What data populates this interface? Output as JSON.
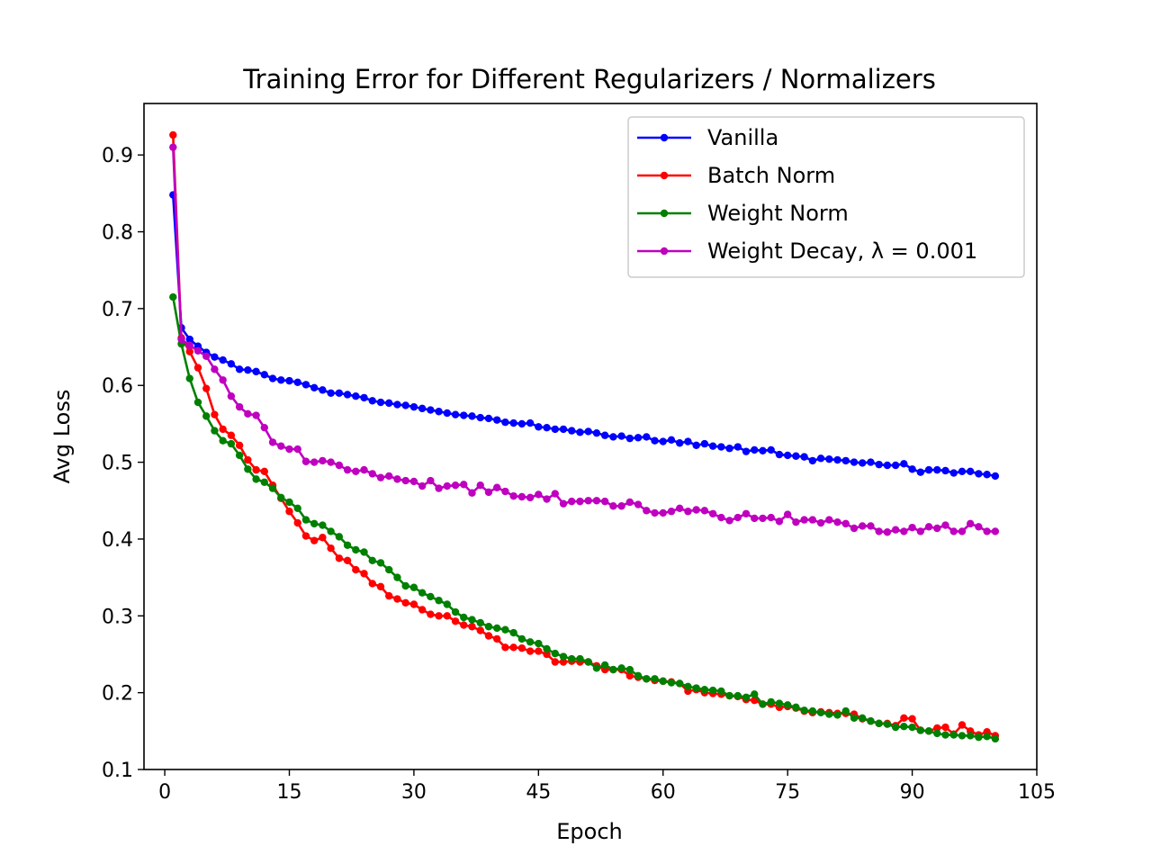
{
  "chart_data": {
    "type": "line",
    "title": "Training Error for Different Regularizers / Normalizers",
    "xlabel": "Epoch",
    "ylabel": "Avg Loss",
    "xlim": [
      -2.5,
      105
    ],
    "ylim": [
      0.1,
      0.967
    ],
    "xticks": [
      0,
      15,
      30,
      45,
      60,
      75,
      90,
      105
    ],
    "yticks": [
      0.1,
      0.2,
      0.3,
      0.4,
      0.5,
      0.6,
      0.7,
      0.8,
      0.9
    ],
    "xtick_labels": [
      "0",
      "15",
      "30",
      "45",
      "60",
      "75",
      "90",
      "105"
    ],
    "ytick_labels": [
      "0.1",
      "0.2",
      "0.3",
      "0.4",
      "0.5",
      "0.6",
      "0.7",
      "0.8",
      "0.9"
    ],
    "grid": false,
    "legend_position": "top-right",
    "x": [
      1,
      2,
      3,
      4,
      5,
      6,
      7,
      8,
      9,
      10,
      11,
      12,
      13,
      14,
      15,
      16,
      17,
      18,
      19,
      20,
      21,
      22,
      23,
      24,
      25,
      26,
      27,
      28,
      29,
      30,
      31,
      32,
      33,
      34,
      35,
      36,
      37,
      38,
      39,
      40,
      41,
      42,
      43,
      44,
      45,
      46,
      47,
      48,
      49,
      50,
      51,
      52,
      53,
      54,
      55,
      56,
      57,
      58,
      59,
      60,
      61,
      62,
      63,
      64,
      65,
      66,
      67,
      68,
      69,
      70,
      71,
      72,
      73,
      74,
      75,
      76,
      77,
      78,
      79,
      80,
      81,
      82,
      83,
      84,
      85,
      86,
      87,
      88,
      89,
      90,
      91,
      92,
      93,
      94,
      95,
      96,
      97,
      98,
      99,
      100
    ],
    "series": [
      {
        "name": "Vanilla",
        "color": "#0000ff",
        "values": [
          0.848,
          0.675,
          0.66,
          0.651,
          0.643,
          0.637,
          0.633,
          0.628,
          0.621,
          0.62,
          0.618,
          0.614,
          0.609,
          0.607,
          0.606,
          0.604,
          0.601,
          0.597,
          0.594,
          0.59,
          0.59,
          0.588,
          0.586,
          0.584,
          0.58,
          0.578,
          0.577,
          0.575,
          0.574,
          0.572,
          0.57,
          0.568,
          0.566,
          0.564,
          0.562,
          0.561,
          0.56,
          0.558,
          0.557,
          0.555,
          0.552,
          0.551,
          0.55,
          0.551,
          0.546,
          0.545,
          0.543,
          0.543,
          0.541,
          0.539,
          0.54,
          0.538,
          0.535,
          0.533,
          0.534,
          0.531,
          0.532,
          0.533,
          0.528,
          0.527,
          0.529,
          0.525,
          0.527,
          0.522,
          0.524,
          0.521,
          0.52,
          0.518,
          0.52,
          0.514,
          0.516,
          0.515,
          0.516,
          0.51,
          0.509,
          0.508,
          0.507,
          0.502,
          0.505,
          0.504,
          0.503,
          0.502,
          0.5,
          0.499,
          0.5,
          0.497,
          0.496,
          0.496,
          0.498,
          0.491,
          0.487,
          0.49,
          0.49,
          0.489,
          0.486,
          0.488,
          0.488,
          0.485,
          0.484,
          0.482
        ]
      },
      {
        "name": "Batch Norm",
        "color": "#ff0000",
        "values": [
          0.926,
          0.662,
          0.644,
          0.623,
          0.596,
          0.562,
          0.543,
          0.535,
          0.522,
          0.503,
          0.49,
          0.488,
          0.47,
          0.453,
          0.436,
          0.421,
          0.404,
          0.398,
          0.402,
          0.388,
          0.375,
          0.372,
          0.36,
          0.355,
          0.342,
          0.338,
          0.326,
          0.322,
          0.317,
          0.315,
          0.308,
          0.302,
          0.3,
          0.3,
          0.293,
          0.288,
          0.286,
          0.281,
          0.274,
          0.27,
          0.259,
          0.259,
          0.258,
          0.254,
          0.254,
          0.25,
          0.24,
          0.24,
          0.241,
          0.24,
          0.24,
          0.235,
          0.23,
          0.23,
          0.23,
          0.222,
          0.22,
          0.218,
          0.216,
          0.215,
          0.214,
          0.212,
          0.202,
          0.204,
          0.2,
          0.199,
          0.198,
          0.196,
          0.195,
          0.191,
          0.19,
          0.185,
          0.185,
          0.181,
          0.182,
          0.18,
          0.176,
          0.174,
          0.175,
          0.174,
          0.173,
          0.173,
          0.172,
          0.166,
          0.163,
          0.16,
          0.16,
          0.157,
          0.167,
          0.166,
          0.151,
          0.15,
          0.154,
          0.155,
          0.146,
          0.158,
          0.15,
          0.145,
          0.149,
          0.144
        ]
      },
      {
        "name": "Weight Norm",
        "color": "#008000",
        "values": [
          0.715,
          0.654,
          0.609,
          0.578,
          0.56,
          0.541,
          0.528,
          0.524,
          0.509,
          0.491,
          0.478,
          0.474,
          0.466,
          0.454,
          0.448,
          0.44,
          0.425,
          0.42,
          0.418,
          0.41,
          0.403,
          0.392,
          0.386,
          0.383,
          0.372,
          0.369,
          0.36,
          0.35,
          0.339,
          0.337,
          0.33,
          0.325,
          0.32,
          0.315,
          0.305,
          0.298,
          0.295,
          0.291,
          0.286,
          0.284,
          0.282,
          0.278,
          0.27,
          0.266,
          0.264,
          0.257,
          0.251,
          0.247,
          0.244,
          0.244,
          0.24,
          0.232,
          0.236,
          0.23,
          0.232,
          0.23,
          0.222,
          0.218,
          0.218,
          0.215,
          0.213,
          0.212,
          0.208,
          0.206,
          0.204,
          0.203,
          0.202,
          0.196,
          0.196,
          0.194,
          0.198,
          0.185,
          0.188,
          0.186,
          0.184,
          0.181,
          0.177,
          0.176,
          0.174,
          0.172,
          0.171,
          0.176,
          0.167,
          0.167,
          0.163,
          0.16,
          0.159,
          0.155,
          0.156,
          0.155,
          0.151,
          0.15,
          0.147,
          0.145,
          0.145,
          0.144,
          0.144,
          0.142,
          0.143,
          0.14
        ]
      },
      {
        "name": "Weight Decay, λ = 0.001",
        "color": "#bf00bf",
        "values": [
          0.91,
          0.66,
          0.652,
          0.645,
          0.638,
          0.621,
          0.607,
          0.586,
          0.572,
          0.563,
          0.561,
          0.545,
          0.526,
          0.521,
          0.517,
          0.517,
          0.501,
          0.5,
          0.502,
          0.5,
          0.496,
          0.49,
          0.488,
          0.49,
          0.485,
          0.48,
          0.482,
          0.478,
          0.476,
          0.475,
          0.469,
          0.476,
          0.466,
          0.469,
          0.47,
          0.471,
          0.46,
          0.47,
          0.461,
          0.467,
          0.462,
          0.456,
          0.455,
          0.454,
          0.458,
          0.452,
          0.459,
          0.446,
          0.449,
          0.449,
          0.45,
          0.45,
          0.449,
          0.443,
          0.443,
          0.448,
          0.445,
          0.437,
          0.434,
          0.434,
          0.436,
          0.44,
          0.436,
          0.438,
          0.437,
          0.433,
          0.428,
          0.424,
          0.428,
          0.433,
          0.427,
          0.427,
          0.428,
          0.423,
          0.432,
          0.422,
          0.425,
          0.425,
          0.421,
          0.425,
          0.422,
          0.42,
          0.414,
          0.417,
          0.417,
          0.41,
          0.409,
          0.412,
          0.41,
          0.415,
          0.41,
          0.416,
          0.414,
          0.418,
          0.41,
          0.41,
          0.42,
          0.416,
          0.41,
          0.41
        ]
      }
    ]
  }
}
